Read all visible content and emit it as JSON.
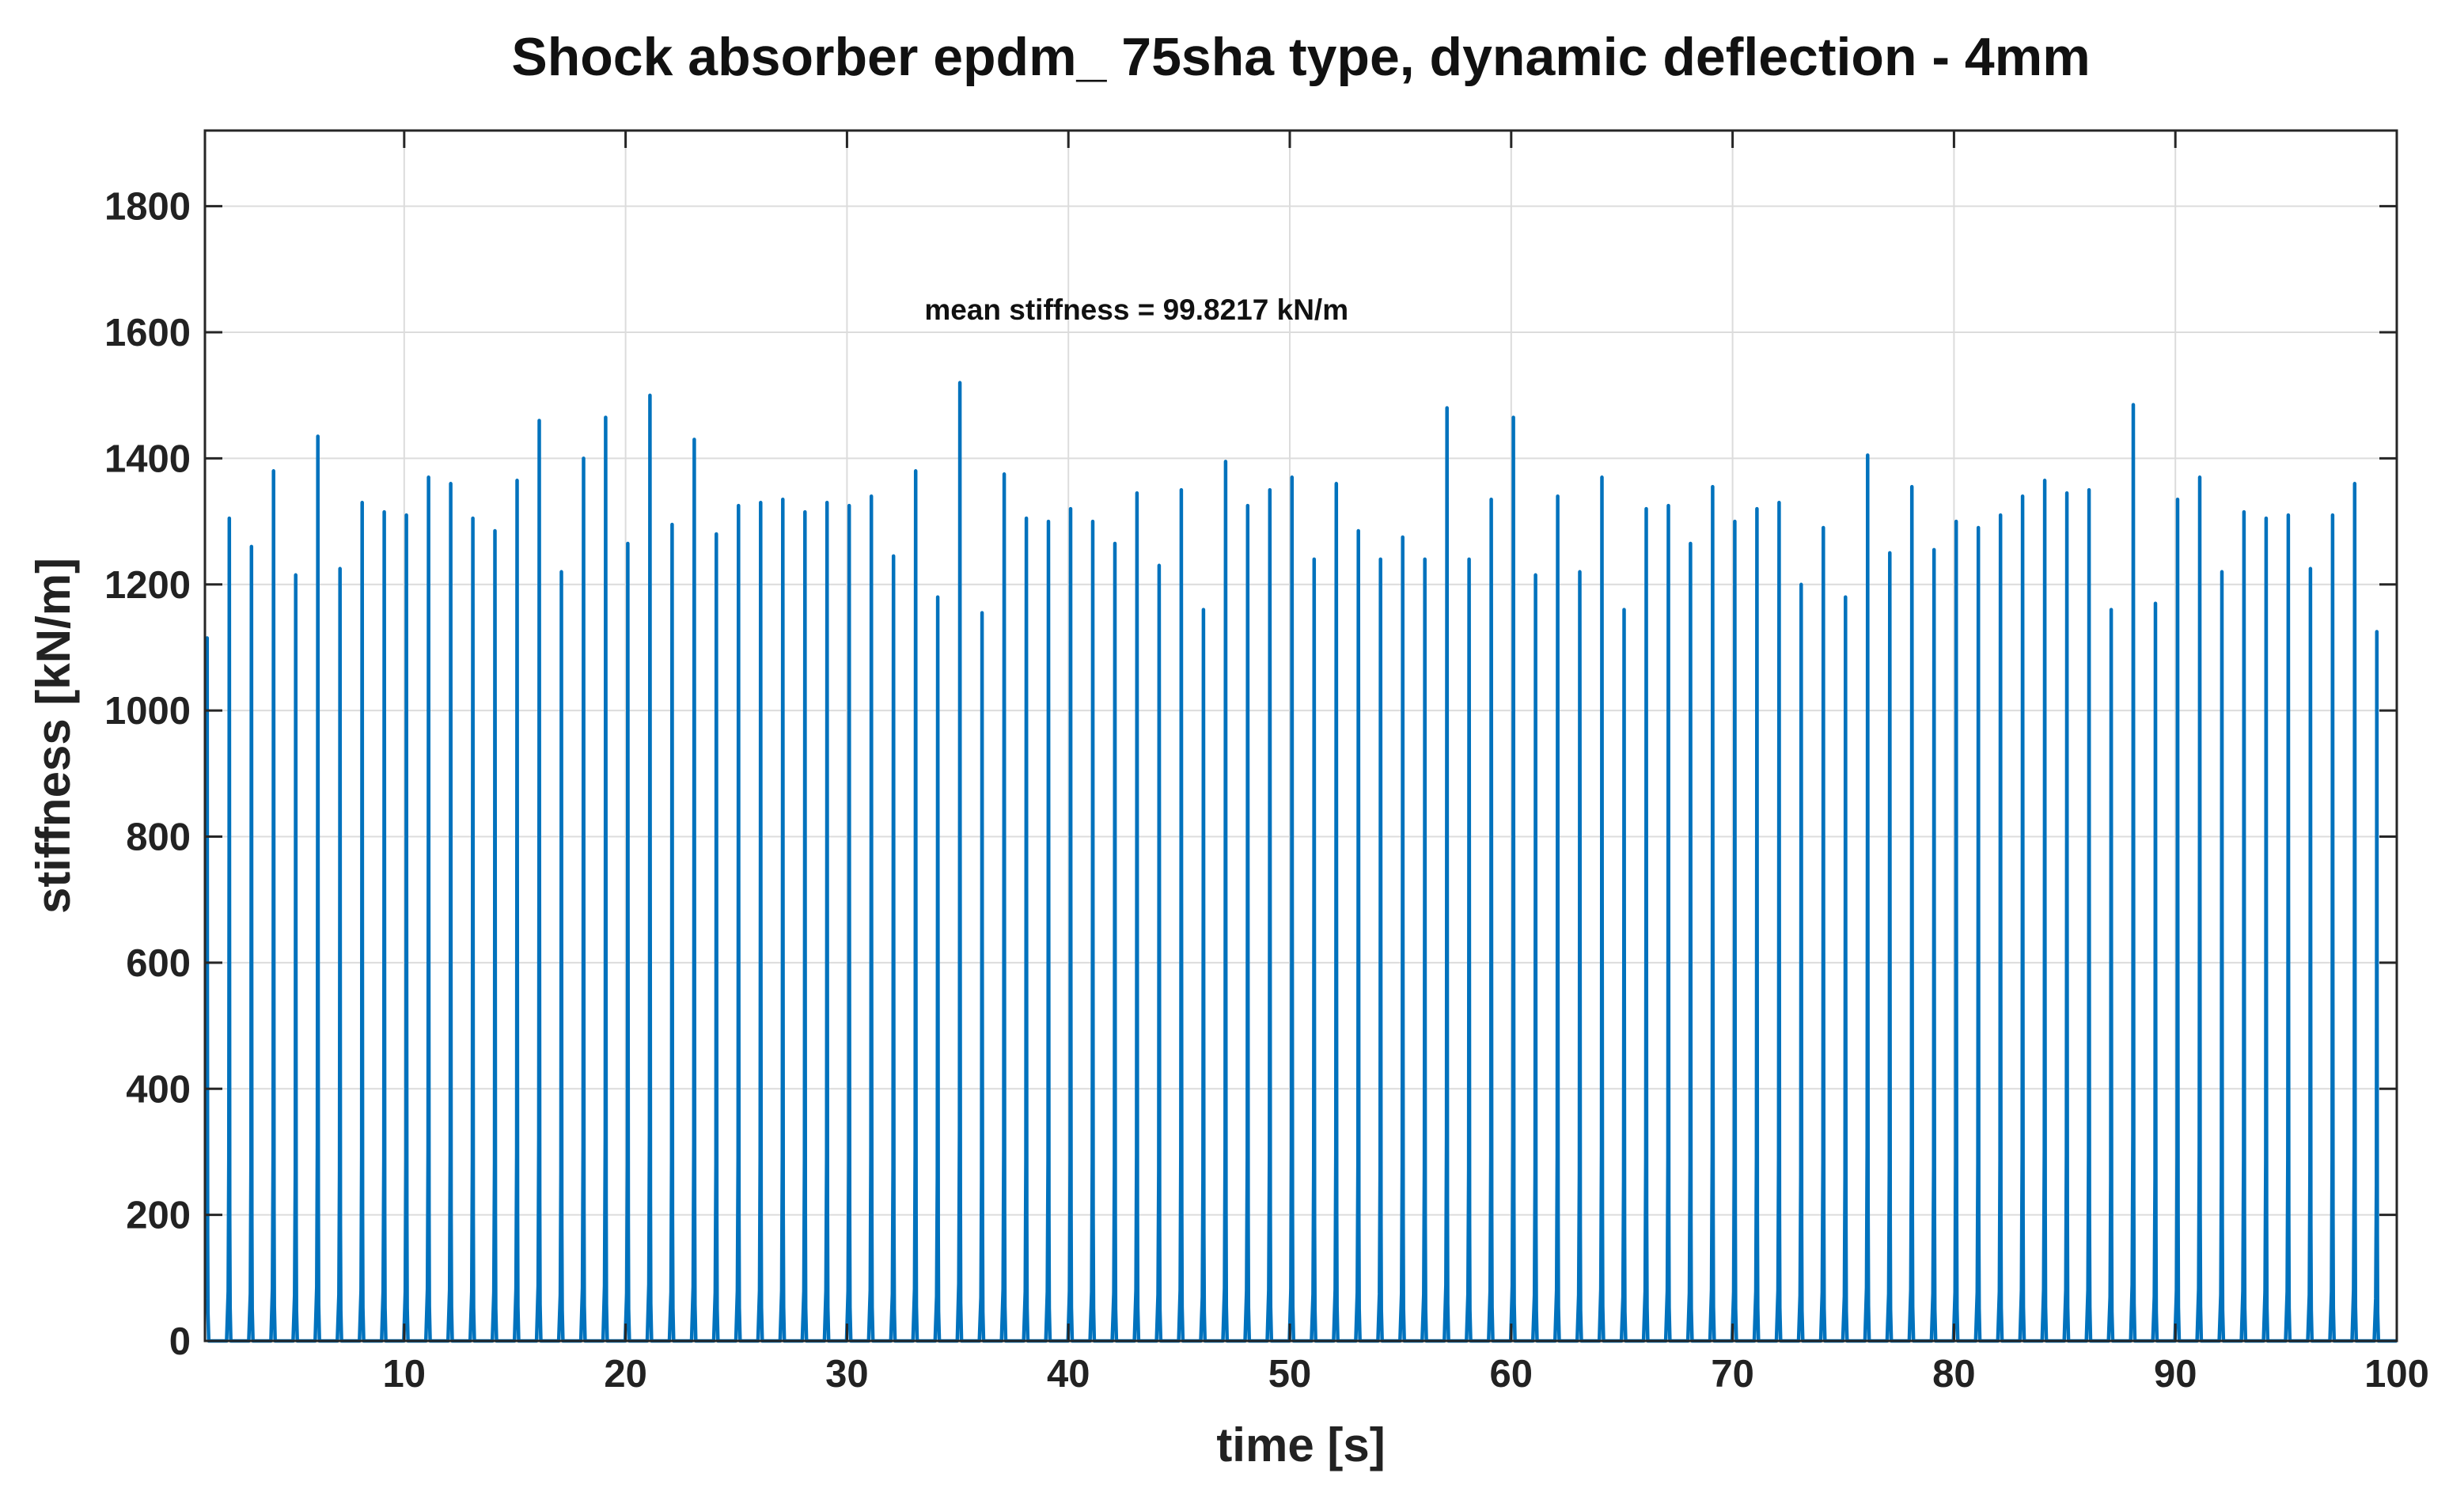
{
  "chart_data": {
    "type": "line",
    "title": "Shock absorber epdm_ 75sha type, dynamic deflection - 4mm",
    "xlabel": "time [s]",
    "ylabel": "stiffness [kN/m]",
    "xlim": [
      1,
      100
    ],
    "ylim": [
      0,
      1920
    ],
    "xticks": [
      10,
      20,
      30,
      40,
      50,
      60,
      70,
      80,
      90,
      100
    ],
    "yticks": [
      0,
      200,
      400,
      600,
      800,
      1000,
      1200,
      1400,
      1600,
      1800
    ],
    "grid": true,
    "annotation": {
      "text": "mean stiffness = 99.8217 kN/m",
      "x": 33.5,
      "y": 1620
    },
    "series": [
      {
        "color": "#0072BD",
        "baseline": 0,
        "peaks": {
          "x": [
            1.1,
            2.1,
            3.1,
            4.1,
            5.1,
            6.1,
            7.1,
            8.1,
            9.1,
            10.1,
            11.1,
            12.1,
            13.1,
            14.1,
            15.1,
            16.1,
            17.1,
            18.1,
            19.1,
            20.1,
            21.1,
            22.1,
            23.1,
            24.1,
            25.1,
            26.1,
            27.1,
            28.1,
            29.1,
            30.1,
            31.1,
            32.1,
            33.1,
            34.1,
            35.1,
            36.1,
            37.1,
            38.1,
            39.1,
            40.1,
            41.1,
            42.1,
            43.1,
            44.1,
            45.1,
            46.1,
            47.1,
            48.1,
            49.1,
            50.1,
            51.1,
            52.1,
            53.1,
            54.1,
            55.1,
            56.1,
            57.1,
            58.1,
            59.1,
            60.1,
            61.1,
            62.1,
            63.1,
            64.1,
            65.1,
            66.1,
            67.1,
            68.1,
            69.1,
            70.1,
            71.1,
            72.1,
            73.1,
            74.1,
            75.1,
            76.1,
            77.1,
            78.1,
            79.1,
            80.1,
            81.1,
            82.1,
            83.1,
            84.1,
            85.1,
            86.1,
            87.1,
            88.1,
            89.1,
            90.1,
            91.1,
            92.1,
            93.1,
            94.1,
            95.1,
            96.1,
            97.1,
            98.1,
            99.1
          ],
          "y": [
            1115,
            1305,
            1260,
            1380,
            1215,
            1435,
            1225,
            1330,
            1315,
            1310,
            1370,
            1360,
            1305,
            1285,
            1365,
            1460,
            1220,
            1400,
            1465,
            1265,
            1500,
            1295,
            1430,
            1280,
            1325,
            1330,
            1335,
            1315,
            1330,
            1325,
            1340,
            1245,
            1380,
            1180,
            1520,
            1155,
            1375,
            1305,
            1300,
            1320,
            1300,
            1265,
            1345,
            1230,
            1350,
            1160,
            1395,
            1325,
            1350,
            1370,
            1240,
            1360,
            1285,
            1240,
            1275,
            1240,
            1480,
            1240,
            1335,
            1465,
            1215,
            1340,
            1220,
            1370,
            1160,
            1320,
            1325,
            1265,
            1355,
            1300,
            1320,
            1330,
            1200,
            1290,
            1180,
            1405,
            1250,
            1355,
            1255,
            1300,
            1290,
            1310,
            1340,
            1365,
            1345,
            1350,
            1160,
            1485,
            1170,
            1335,
            1370,
            1220,
            1315,
            1305,
            1310,
            1225,
            1310,
            1360,
            1125
          ]
        }
      }
    ]
  }
}
